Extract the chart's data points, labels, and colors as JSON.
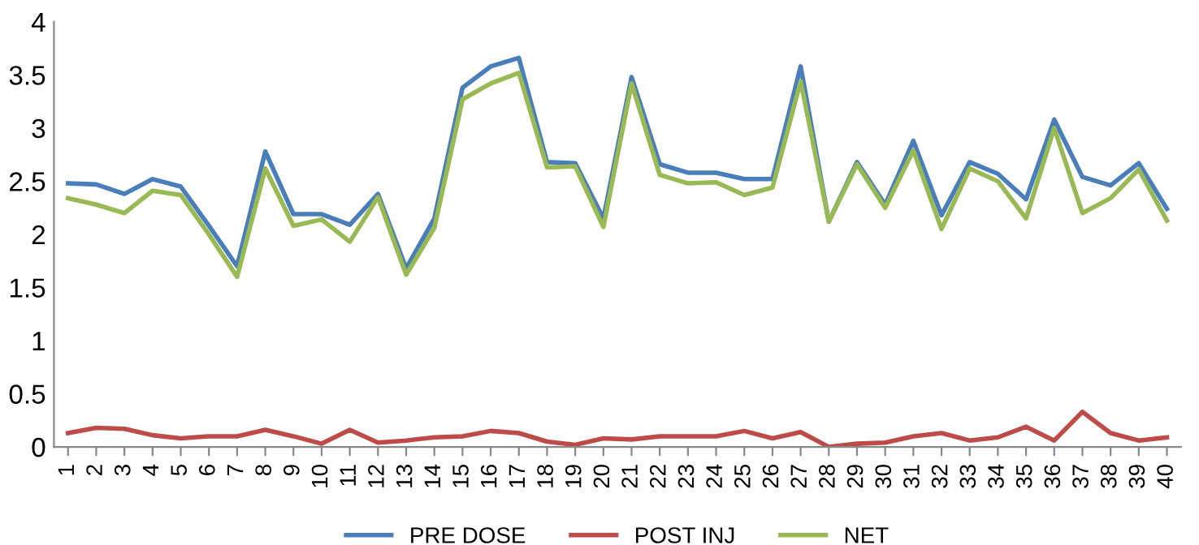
{
  "chart_data": {
    "type": "line",
    "categories": [
      "1",
      "2",
      "3",
      "4",
      "5",
      "6",
      "7",
      "8",
      "9",
      "10",
      "11",
      "12",
      "13",
      "14",
      "15",
      "16",
      "17",
      "18",
      "19",
      "20",
      "21",
      "22",
      "23",
      "24",
      "25",
      "26",
      "27",
      "28",
      "29",
      "30",
      "31",
      "32",
      "33",
      "34",
      "35",
      "36",
      "37",
      "38",
      "39",
      "40"
    ],
    "series": [
      {
        "name": "PRE DOSE",
        "color": "#4a7ebb",
        "values": [
          2.48,
          2.47,
          2.38,
          2.52,
          2.45,
          2.08,
          1.7,
          2.78,
          2.19,
          2.19,
          2.09,
          2.38,
          1.68,
          2.15,
          3.38,
          3.58,
          3.66,
          2.68,
          2.67,
          2.15,
          3.48,
          2.66,
          2.58,
          2.58,
          2.52,
          2.52,
          3.58,
          2.12,
          2.68,
          2.28,
          2.88,
          2.18,
          2.68,
          2.57,
          2.33,
          3.08,
          2.54,
          2.46,
          2.67,
          2.24
        ]
      },
      {
        "name": "POST INJ",
        "color": "#be4b48",
        "values": [
          0.13,
          0.18,
          0.17,
          0.11,
          0.08,
          0.1,
          0.1,
          0.16,
          0.1,
          0.03,
          0.16,
          0.04,
          0.06,
          0.09,
          0.1,
          0.15,
          0.13,
          0.05,
          0.02,
          0.08,
          0.07,
          0.1,
          0.1,
          0.1,
          0.15,
          0.08,
          0.14,
          0,
          0.03,
          0.04,
          0.1,
          0.13,
          0.06,
          0.09,
          0.19,
          0.06,
          0.33,
          0.13,
          0.06,
          0.09
        ]
      },
      {
        "name": "NET",
        "color": "#98b954",
        "values": [
          2.34,
          2.28,
          2.2,
          2.41,
          2.37,
          2.0,
          1.6,
          2.62,
          2.08,
          2.14,
          1.93,
          2.35,
          1.62,
          2.06,
          3.27,
          3.42,
          3.52,
          2.63,
          2.64,
          2.07,
          3.42,
          2.56,
          2.48,
          2.49,
          2.37,
          2.44,
          3.44,
          2.12,
          2.66,
          2.25,
          2.79,
          2.05,
          2.62,
          2.5,
          2.15,
          3.0,
          2.2,
          2.34,
          2.61,
          2.13
        ]
      }
    ],
    "ylim": [
      0,
      4
    ],
    "yticks": [
      0,
      0.5,
      1,
      1.5,
      2,
      2.5,
      3,
      3.5,
      4
    ],
    "legend": "bottom",
    "grid": false
  }
}
